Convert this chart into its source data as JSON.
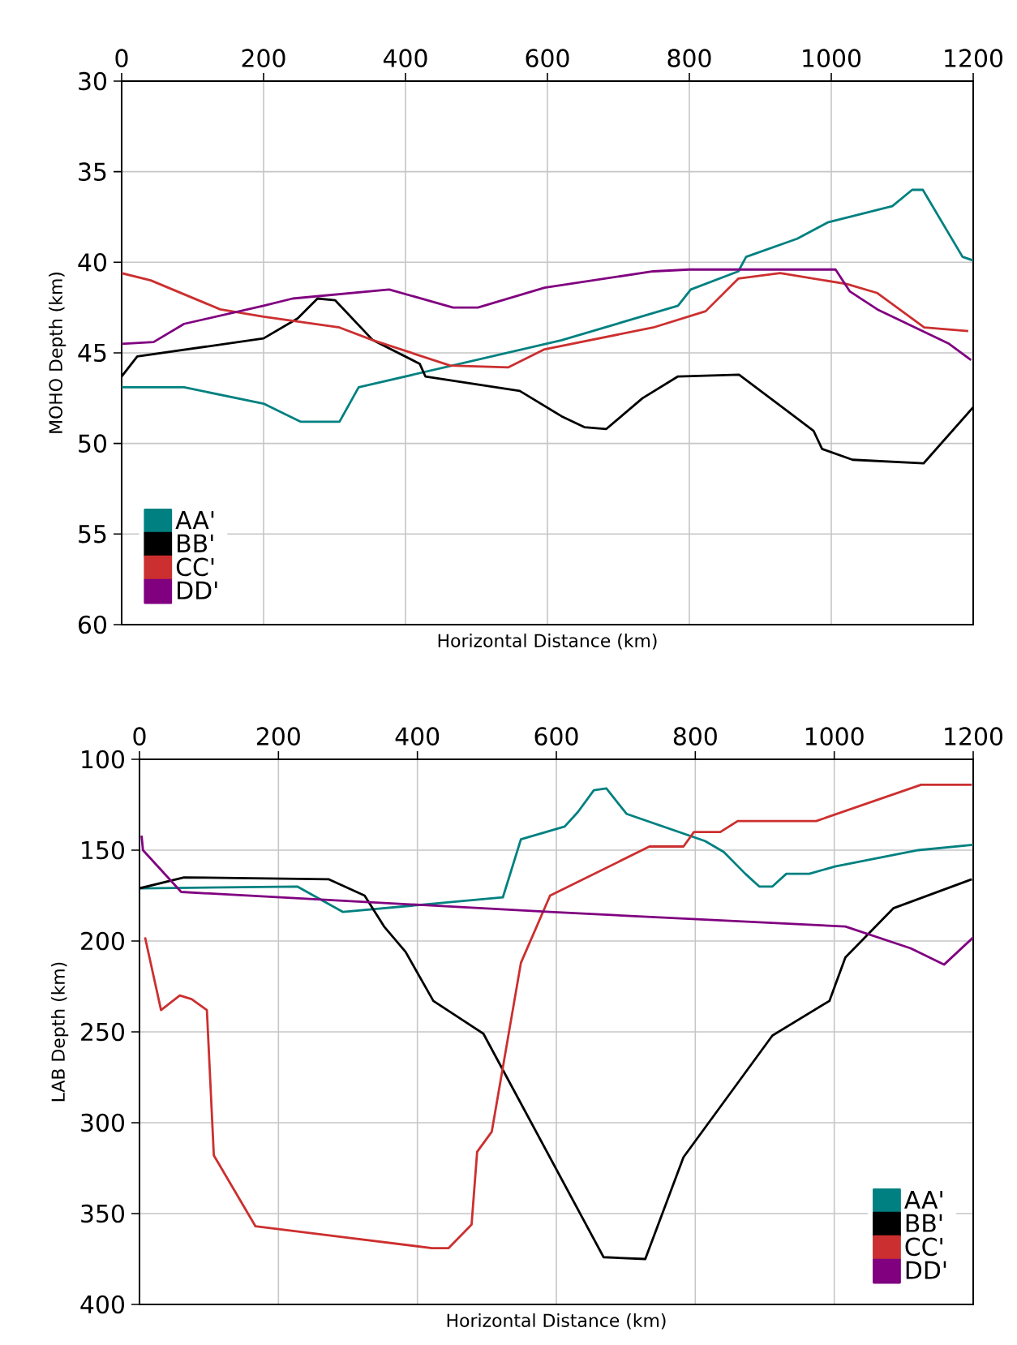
{
  "chart_data": [
    {
      "type": "line",
      "xlabel": "Horizontal Distance (km)",
      "ylabel": "MOHO Depth (km)",
      "xlim": [
        0,
        1200
      ],
      "xticks": [
        0,
        200,
        400,
        600,
        800,
        1000,
        1200
      ],
      "ylim": [
        60,
        30
      ],
      "yticks": [
        30,
        35,
        40,
        45,
        50,
        55,
        60
      ],
      "grid": true,
      "legend": "bottom left",
      "series": [
        {
          "name": "AA'",
          "color": "#008080",
          "x": [
            0,
            88,
            200,
            252,
            307,
            334,
            620,
            784,
            802,
            869,
            880,
            952,
            995,
            1086,
            1114,
            1129,
            1185,
            1200
          ],
          "values": [
            46.9,
            46.9,
            47.8,
            48.8,
            48.8,
            46.9,
            44.3,
            42.4,
            41.5,
            40.5,
            39.7,
            38.7,
            37.8,
            36.9,
            36.0,
            36.0,
            39.7,
            39.9
          ]
        },
        {
          "name": "BB'",
          "color": "#000000",
          "x": [
            0,
            22,
            200,
            248,
            276,
            301,
            354,
            420,
            428,
            561,
            620,
            652,
            683,
            734,
            784,
            870,
            975,
            987,
            1030,
            1130,
            1200
          ],
          "values": [
            46.3,
            45.2,
            44.2,
            43.1,
            42.0,
            42.1,
            44.3,
            45.6,
            46.3,
            47.1,
            48.5,
            49.1,
            49.2,
            47.5,
            46.3,
            46.2,
            49.3,
            50.3,
            50.9,
            51.1,
            48.0
          ]
        },
        {
          "name": "CC'",
          "color": "#cc2f2f",
          "x": [
            0,
            41,
            139,
            200,
            307,
            354,
            463,
            545,
            596,
            749,
            823,
            869,
            928,
            1022,
            1065,
            1131,
            1193
          ],
          "values": [
            40.6,
            41.0,
            42.6,
            43.0,
            43.6,
            44.3,
            45.7,
            45.8,
            44.8,
            43.6,
            42.7,
            40.9,
            40.6,
            41.2,
            41.7,
            43.6,
            43.8
          ]
        },
        {
          "name": "DD'",
          "color": "#800080",
          "x": [
            0,
            45,
            88,
            200,
            241,
            377,
            467,
            502,
            596,
            749,
            800,
            1006,
            1026,
            1065,
            1166,
            1197
          ],
          "values": [
            44.5,
            44.4,
            43.4,
            42.4,
            42.0,
            41.5,
            42.5,
            42.5,
            41.4,
            40.5,
            40.4,
            40.4,
            41.6,
            42.6,
            44.5,
            45.4
          ]
        }
      ]
    },
    {
      "type": "line",
      "xlabel": "Horizontal Distance (km)",
      "ylabel": "LAB Depth (km)",
      "xlim": [
        0,
        1200
      ],
      "xticks": [
        0,
        200,
        400,
        600,
        800,
        1000,
        1200
      ],
      "ylim": [
        400,
        100
      ],
      "yticks": [
        100,
        150,
        200,
        250,
        300,
        350,
        400
      ],
      "grid": true,
      "legend": "bottom right",
      "series": [
        {
          "name": "AA'",
          "color": "#008080",
          "x": [
            0,
            227,
            293,
            523,
            549,
            612,
            631,
            654,
            672,
            701,
            814,
            841,
            872,
            892,
            911,
            931,
            964,
            1001,
            1121,
            1200
          ],
          "values": [
            171,
            170,
            184,
            176,
            144,
            137,
            129,
            117,
            116,
            130,
            145,
            151,
            163,
            170,
            170,
            163,
            163,
            159,
            150,
            147
          ]
        },
        {
          "name": "BB'",
          "color": "#000000",
          "x": [
            0,
            64,
            272,
            324,
            352,
            383,
            423,
            495,
            668,
            728,
            783,
            911,
            993,
            1016,
            1085,
            1198
          ],
          "values": [
            171,
            165,
            166,
            175,
            192,
            206,
            233,
            251,
            374,
            375,
            319,
            252,
            233,
            209,
            182,
            166
          ]
        },
        {
          "name": "CC'",
          "color": "#cc2f2f",
          "x": [
            8,
            31,
            58,
            75,
            97,
            107,
            167,
            421,
            445,
            478,
            486,
            507,
            549,
            591,
            734,
            783,
            798,
            836,
            861,
            974,
            1125,
            1198
          ],
          "values": [
            198,
            238,
            230,
            232,
            238,
            318,
            357,
            369,
            369,
            356,
            316,
            305,
            212,
            175,
            148,
            148,
            140,
            140,
            134,
            134,
            114,
            114
          ]
        },
        {
          "name": "DD'",
          "color": "#800080",
          "x": [
            3,
            5,
            60,
            591,
            1016,
            1110,
            1158,
            1200
          ],
          "values": [
            142,
            150,
            173,
            184,
            192,
            204,
            213,
            198
          ]
        }
      ]
    }
  ]
}
